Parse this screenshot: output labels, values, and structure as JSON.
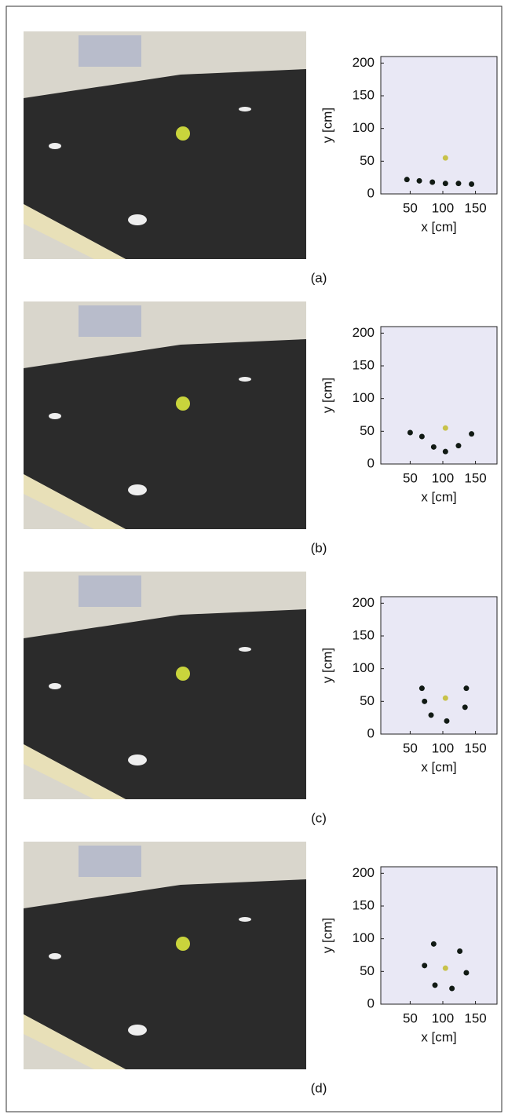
{
  "chart_data": [
    {
      "type": "scatter",
      "caption": "(a)",
      "x_label": "x [cm]",
      "y_label": "y [cm]",
      "xlim": [
        5,
        183
      ],
      "ylim": [
        0,
        210
      ],
      "xticks": [
        50,
        100,
        150
      ],
      "yticks": [
        0,
        50,
        100,
        150,
        200
      ],
      "series": [
        {
          "color": "#111a14",
          "x": [
            45,
            64,
            84,
            104,
            124,
            144
          ],
          "values": [
            22,
            20,
            18,
            16,
            16,
            15
          ]
        },
        {
          "color": "#c8c24a",
          "x": [
            104
          ],
          "values": [
            55
          ]
        }
      ]
    },
    {
      "type": "scatter",
      "caption": "(b)",
      "x_label": "x [cm]",
      "y_label": "y [cm]",
      "xlim": [
        5,
        183
      ],
      "ylim": [
        0,
        210
      ],
      "xticks": [
        50,
        100,
        150
      ],
      "yticks": [
        0,
        50,
        100,
        150,
        200
      ],
      "series": [
        {
          "color": "#111a14",
          "x": [
            50,
            68,
            86,
            104,
            124,
            144
          ],
          "values": [
            48,
            42,
            26,
            19,
            28,
            46
          ]
        },
        {
          "color": "#c8c24a",
          "x": [
            104
          ],
          "values": [
            55
          ]
        }
      ]
    },
    {
      "type": "scatter",
      "caption": "(c)",
      "x_label": "x [cm]",
      "y_label": "y [cm]",
      "xlim": [
        5,
        183
      ],
      "ylim": [
        0,
        210
      ],
      "xticks": [
        50,
        100,
        150
      ],
      "yticks": [
        0,
        50,
        100,
        150,
        200
      ],
      "series": [
        {
          "color": "#111a14",
          "x": [
            68,
            72,
            82,
            106,
            134,
            136
          ],
          "values": [
            70,
            50,
            29,
            20,
            41,
            70
          ]
        },
        {
          "color": "#c8c24a",
          "x": [
            104
          ],
          "values": [
            55
          ]
        }
      ]
    },
    {
      "type": "scatter",
      "caption": "(d)",
      "x_label": "x [cm]",
      "y_label": "y [cm]",
      "xlim": [
        5,
        183
      ],
      "ylim": [
        0,
        210
      ],
      "xticks": [
        50,
        100,
        150
      ],
      "yticks": [
        0,
        50,
        100,
        150,
        200
      ],
      "series": [
        {
          "color": "#111a14",
          "x": [
            72,
            86,
            88,
            114,
            126,
            136
          ],
          "values": [
            59,
            92,
            29,
            24,
            81,
            48
          ]
        },
        {
          "color": "#c8c24a",
          "x": [
            104
          ],
          "values": [
            55
          ]
        }
      ]
    }
  ]
}
